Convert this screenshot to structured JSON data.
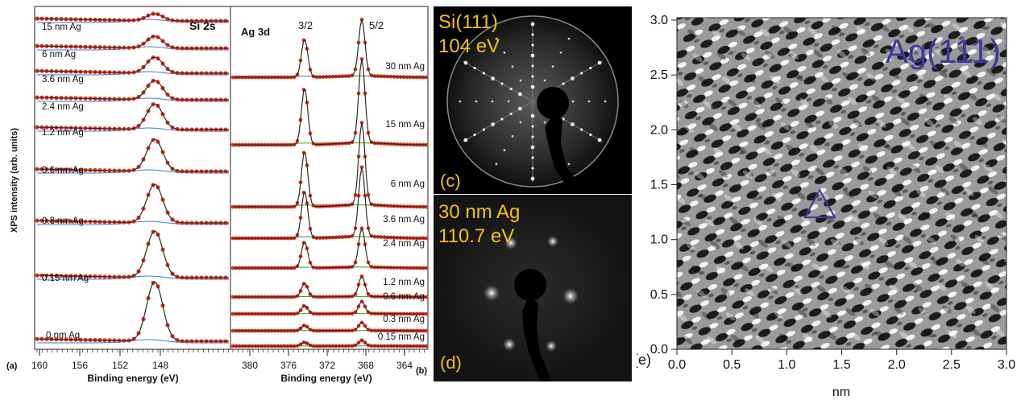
{
  "panel_a": {
    "label": "(a)",
    "core_level": "Si 2s",
    "y_axis_label": "XPS intensity (arb. units)",
    "x_axis_label": "Binding energy (eV)",
    "x_ticks": [
      "160",
      "156",
      "152",
      "148"
    ],
    "spectra": [
      "15 nm Ag",
      "6 nm Ag",
      "3.6 nm Ag",
      "2.4 nm Ag",
      "1.2 nm Ag",
      "0.6 nm Ag",
      "0.3 nm Ag",
      "0.15 nm Ag",
      "0 nm Ag"
    ]
  },
  "panel_b": {
    "label": "(b)",
    "core_level": "Ag 3d",
    "peak_labels": [
      "3/2",
      "5/2"
    ],
    "x_axis_label": "Binding energy (eV)",
    "x_ticks": [
      "380",
      "376",
      "372",
      "368",
      "364"
    ],
    "spectra": [
      "30 nm Ag",
      "15 nm Ag",
      "6 nm Ag",
      "3.6 nm Ag",
      "2.4 nm Ag",
      "1.2 nm Ag",
      "0.6 nm Ag",
      "0.3 nm Ag",
      "0.15 nm Ag"
    ]
  },
  "panel_c": {
    "label": "(c)",
    "line1": "Si(111)",
    "line2": "104 eV"
  },
  "panel_d": {
    "label": "(d)",
    "line1": "30 nm Ag",
    "line2": "110.7 eV"
  },
  "panel_e": {
    "label": "(e)",
    "title": "Ag(111)",
    "x_axis_label": "nm",
    "x_ticks": [
      "0.0",
      "0.5",
      "1.0",
      "1.5",
      "2.0",
      "2.5",
      "3.0"
    ],
    "y_ticks": [
      "0.0",
      "0.5",
      "1.0",
      "1.5",
      "2.0",
      "2.5",
      "3.0"
    ]
  },
  "colors": {
    "data_points": "#e8321c",
    "fit": "#2a2a2a",
    "component": "#2aa02a",
    "background": "#3a7bd5",
    "leed_text": "#f2c21a",
    "stm_annotation": "#3d3aa0"
  }
}
